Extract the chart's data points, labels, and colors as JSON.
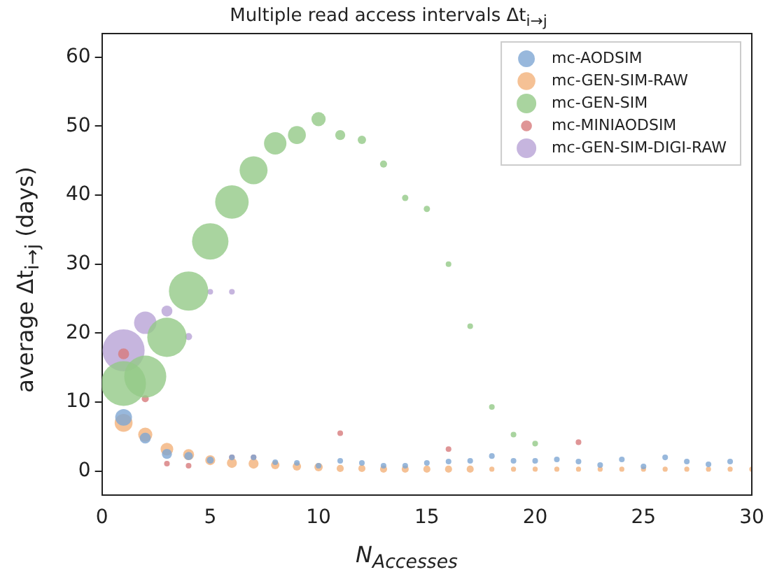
{
  "chart_data": {
    "type": "bubble",
    "title": "Multiple read access intervals Δt$_{i→j}$",
    "xlabel": "N$_{Accesses}$",
    "ylabel": "average Δt$_{i→j}$ (days)",
    "xlim": [
      0,
      30
    ],
    "xticks": [
      0,
      5,
      10,
      15,
      20,
      25,
      30
    ],
    "ylim": [
      -3.5,
      63.4
    ],
    "yticks": [
      0,
      10,
      20,
      30,
      40,
      50,
      60
    ],
    "grid": false,
    "legend": "top right",
    "marker": "circle",
    "series": [
      {
        "name": "mc-AODSIM",
        "color": "#7ea6d3",
        "x": [
          1,
          2,
          3,
          4,
          5,
          6,
          7,
          8,
          9,
          10,
          11,
          12,
          13,
          14,
          15,
          16,
          17,
          18,
          19,
          20,
          21,
          22,
          23,
          24,
          25,
          26,
          27,
          28,
          29
        ],
        "values": [
          7.8,
          4.8,
          2.5,
          2.2,
          1.6,
          2,
          2,
          1.3,
          1.2,
          0.8,
          1.5,
          1.2,
          0.8,
          0.8,
          1.2,
          1.4,
          1.5,
          2.2,
          1.5,
          1.5,
          1.7,
          1.4,
          0.9,
          1.7,
          0.7,
          2,
          1.4,
          1,
          1.4
        ],
        "sizes": [
          0.14,
          0.06,
          0.05,
          0.035,
          0.025,
          0.016,
          0.016,
          0.016,
          0.016,
          0.016,
          0.016,
          0.016,
          0.016,
          0.016,
          0.016,
          0.016,
          0.016,
          0.016,
          0.016,
          0.016,
          0.016,
          0.016,
          0.016,
          0.016,
          0.016,
          0.016,
          0.016,
          0.016,
          0.016
        ]
      },
      {
        "name": "mc-GEN-SIM-RAW",
        "color": "#f2b27a",
        "x": [
          1,
          2,
          3,
          4,
          5,
          6,
          7,
          8,
          9,
          10,
          11,
          12,
          13,
          14,
          15,
          16,
          17,
          18,
          19,
          20,
          21,
          22,
          23,
          24,
          25,
          26,
          27,
          28,
          29,
          30
        ],
        "values": [
          7,
          5.3,
          3.2,
          2.4,
          1.6,
          1.2,
          1.1,
          0.9,
          0.7,
          0.6,
          0.4,
          0.4,
          0.3,
          0.3,
          0.3,
          0.3,
          0.3,
          0.3,
          0.3,
          0.3,
          0.3,
          0.3,
          0.3,
          0.3,
          0.3,
          0.3,
          0.3,
          0.3,
          0.3,
          0.3
        ],
        "sizes": [
          0.16,
          0.1,
          0.08,
          0.06,
          0.05,
          0.05,
          0.05,
          0.035,
          0.035,
          0.035,
          0.025,
          0.025,
          0.025,
          0.025,
          0.025,
          0.025,
          0.025,
          0.013,
          0.013,
          0.013,
          0.013,
          0.013,
          0.013,
          0.013,
          0.013,
          0.013,
          0.013,
          0.013,
          0.013,
          0.013
        ]
      },
      {
        "name": "mc-GEN-SIM",
        "color": "#93c987",
        "x": [
          1,
          2,
          3,
          4,
          5,
          6,
          7,
          8,
          9,
          10,
          11,
          12,
          13,
          14,
          15,
          16,
          17,
          18,
          19,
          20
        ],
        "values": [
          12.7,
          13.7,
          19.4,
          26.1,
          33.3,
          39,
          43.6,
          47.5,
          48.7,
          51,
          48.7,
          48,
          44.5,
          39.6,
          38,
          30,
          21,
          9.3,
          5.3,
          4
        ],
        "sizes": [
          1,
          0.88,
          0.77,
          0.77,
          0.66,
          0.56,
          0.39,
          0.25,
          0.16,
          0.1,
          0.05,
          0.035,
          0.025,
          0.02,
          0.02,
          0.016,
          0.016,
          0.016,
          0.016,
          0.016
        ]
      },
      {
        "name": "mc-MINIAODSIM",
        "color": "#d77b7c",
        "x": [
          1,
          2,
          3,
          4,
          6,
          7,
          11,
          16,
          22
        ],
        "values": [
          17,
          10.5,
          1.1,
          0.8,
          2,
          2,
          5.5,
          3.2,
          4.2
        ],
        "sizes": [
          0.06,
          0.025,
          0.016,
          0.016,
          0.016,
          0.016,
          0.016,
          0.016,
          0.016
        ]
      },
      {
        "name": "mc-GEN-SIM-DIGI-RAW",
        "color": "#b8a3d6",
        "x": [
          1,
          2,
          3,
          4,
          5,
          6
        ],
        "values": [
          17.5,
          21.5,
          23.2,
          19.5,
          26,
          26
        ],
        "sizes": [
          0.88,
          0.25,
          0.06,
          0.025,
          0.016,
          0.016
        ]
      }
    ]
  }
}
